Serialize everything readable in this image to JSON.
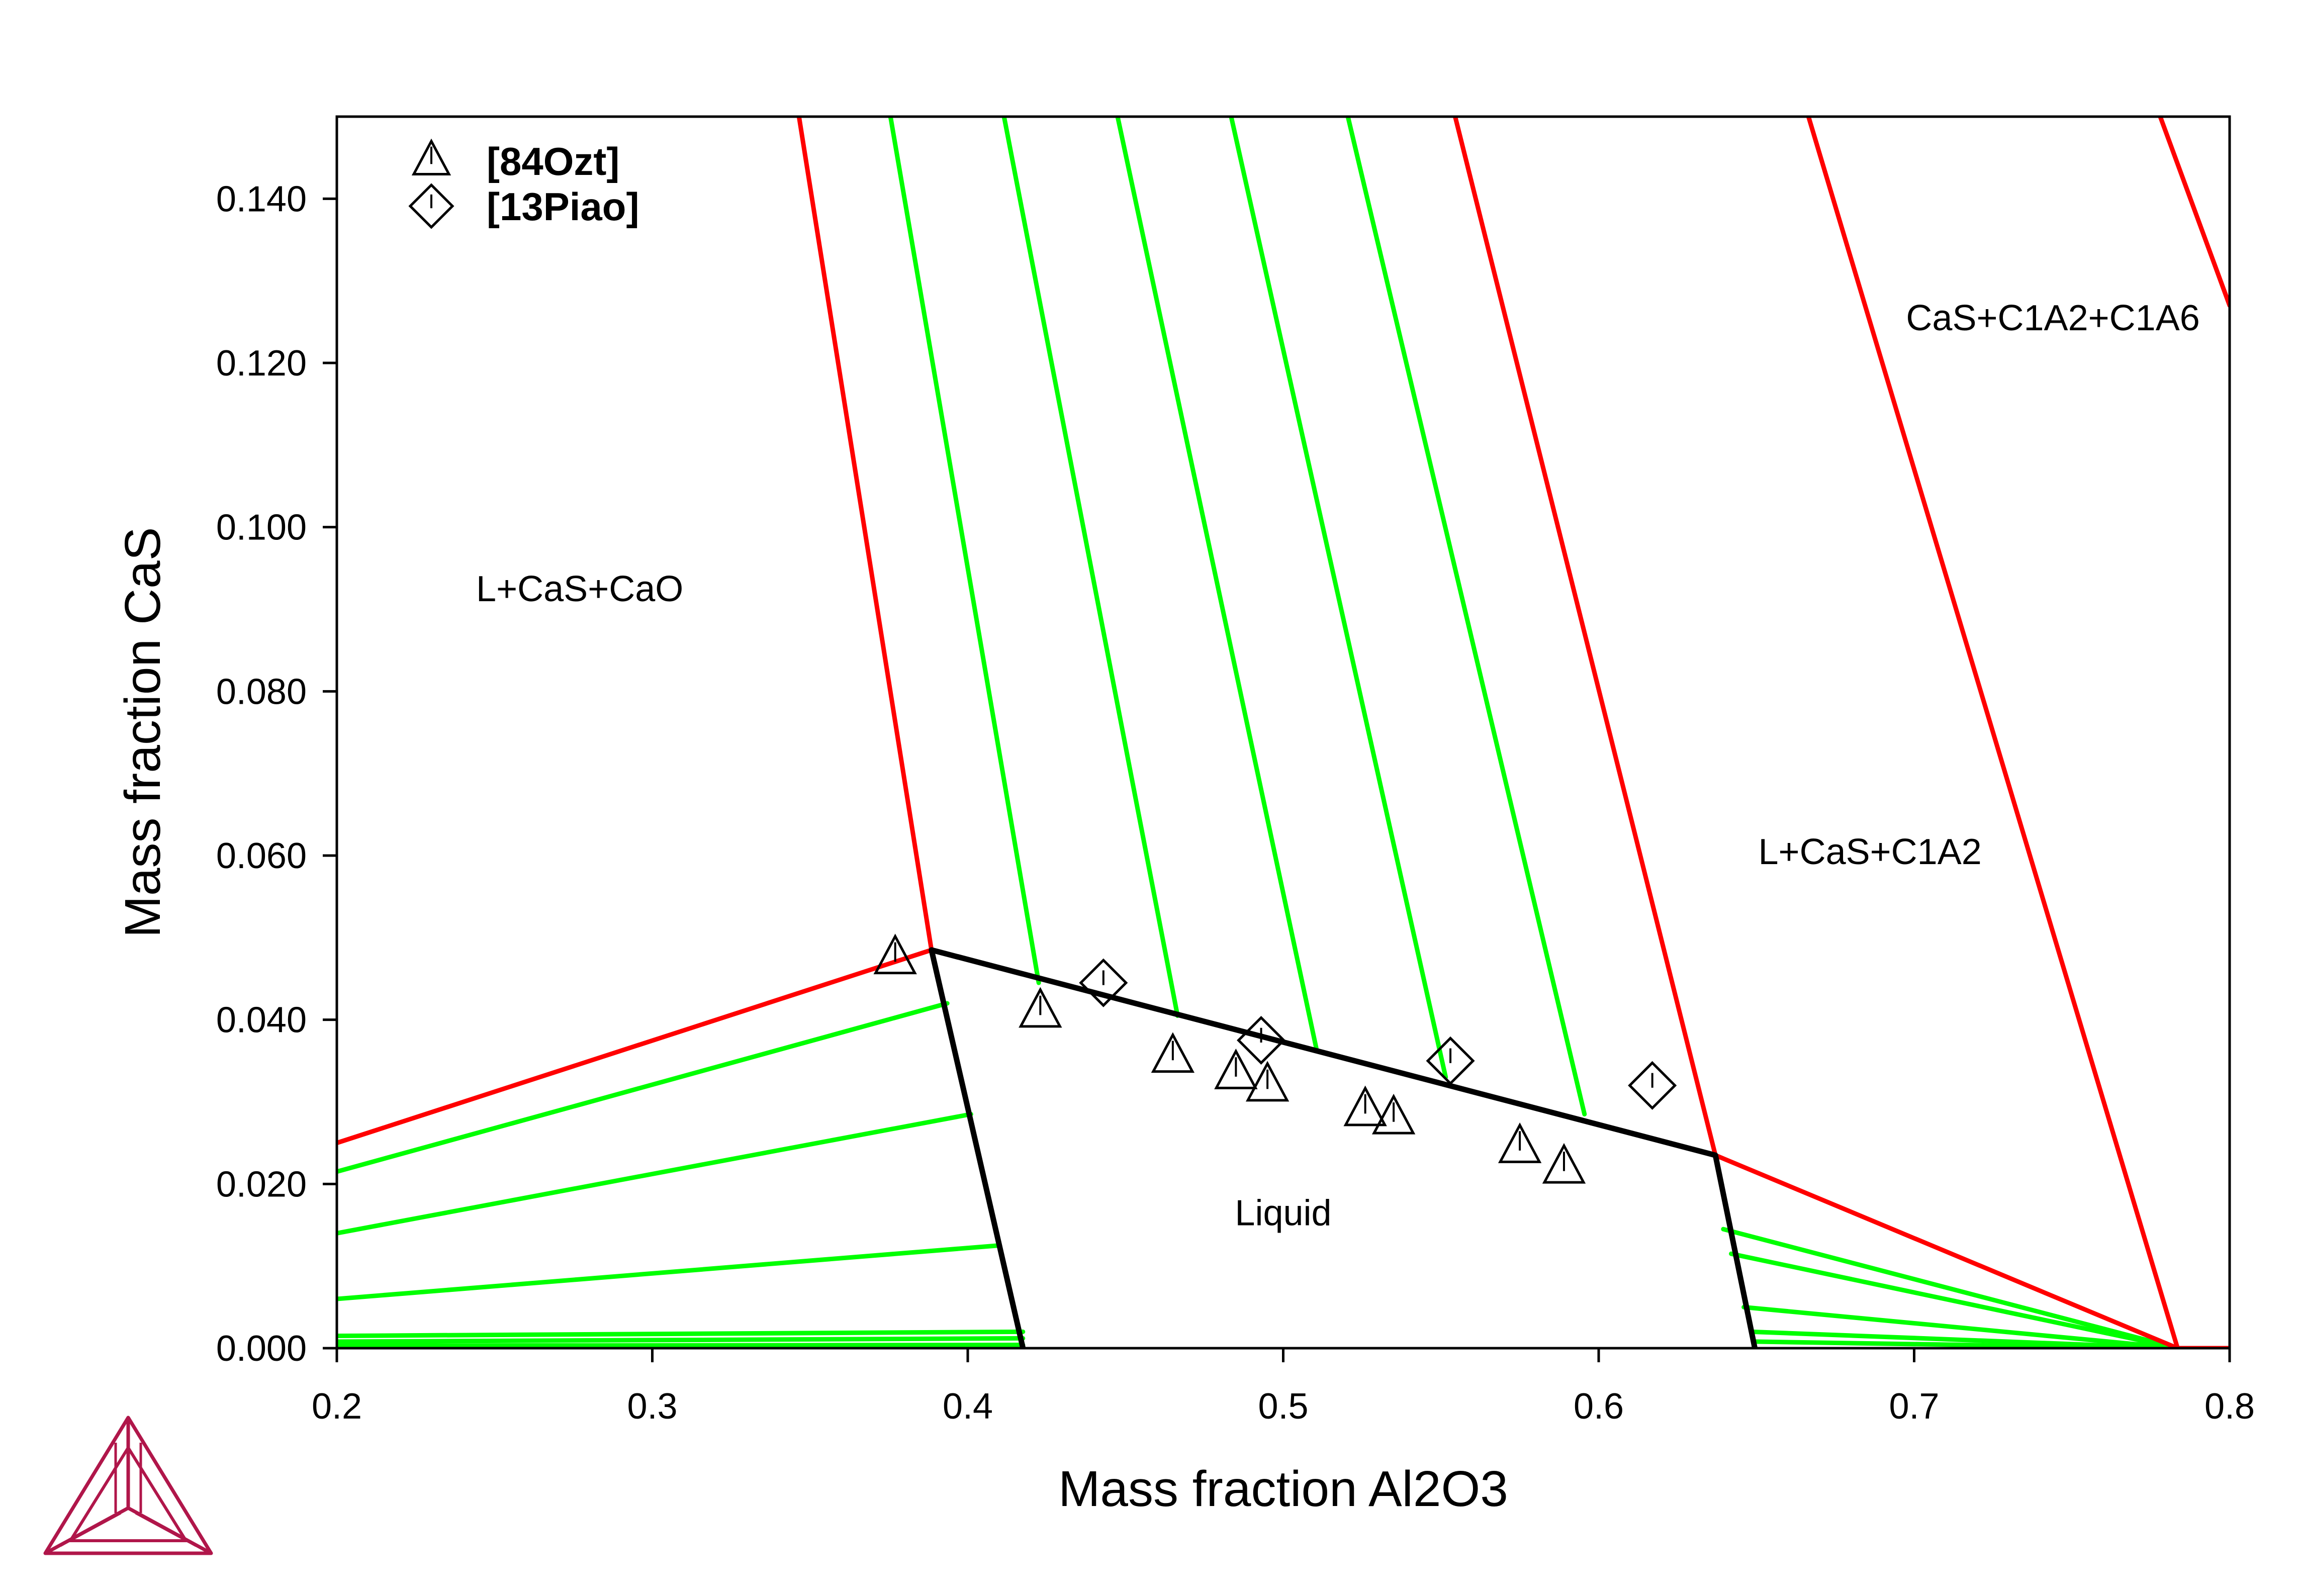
{
  "chart_data": {
    "type": "scatter",
    "xlabel": "Mass fraction Al2O3",
    "ylabel": "Mass fraction CaS",
    "xlim": [
      0.2,
      0.8
    ],
    "ylim": [
      0.0,
      0.15
    ],
    "x_ticks": [
      "0.2",
      "0.3",
      "0.4",
      "0.5",
      "0.6",
      "0.7",
      "0.8"
    ],
    "x_tick_values": [
      0.2,
      0.3,
      0.4,
      0.5,
      0.6,
      0.7,
      0.8
    ],
    "y_ticks": [
      "0.000",
      "0.020",
      "0.040",
      "0.060",
      "0.080",
      "0.100",
      "0.120",
      "0.140"
    ],
    "y_tick_values": [
      0.0,
      0.02,
      0.04,
      0.06,
      0.08,
      0.1,
      0.12,
      0.14
    ],
    "grid": false,
    "legend_position": "top-left",
    "legend": [
      {
        "label": "[84Ozt]",
        "marker": "triangle"
      },
      {
        "label": "[13Piao]",
        "marker": "diamond"
      }
    ],
    "region_labels": [
      {
        "text": "L+CaS+CaO",
        "x": 0.277,
        "y": 0.0925
      },
      {
        "text": "L+CaS+C1A2",
        "x": 0.686,
        "y": 0.0605
      },
      {
        "text": "CaS+C1A2+C1A6",
        "x": 0.744,
        "y": 0.1255
      },
      {
        "text": "Liquid",
        "x": 0.5,
        "y": 0.0165
      }
    ],
    "phase_boundaries": {
      "black_lines": [
        {
          "x": [
            0.3885,
            0.637
          ],
          "y": [
            0.0485,
            0.0235
          ]
        },
        {
          "x": [
            0.3885,
            0.4175
          ],
          "y": [
            0.0485,
            0.0
          ]
        },
        {
          "x": [
            0.637,
            0.6495
          ],
          "y": [
            0.0235,
            0.0
          ]
        }
      ],
      "red_lines": [
        {
          "x": [
            0.2,
            0.3885
          ],
          "y": [
            0.025,
            0.0485
          ]
        },
        {
          "x": [
            0.3885,
            0.3465
          ],
          "y": [
            0.0485,
            0.15
          ]
        },
        {
          "x": [
            0.637,
            0.5545
          ],
          "y": [
            0.0235,
            0.15
          ]
        },
        {
          "x": [
            0.637,
            0.7835
          ],
          "y": [
            0.0235,
            0.0
          ]
        },
        {
          "x": [
            0.7835,
            0.6665
          ],
          "y": [
            0.0,
            0.15
          ]
        },
        {
          "x": [
            0.8,
            0.778
          ],
          "y": [
            0.127,
            0.15
          ]
        },
        {
          "x": [
            0.7835,
            0.8
          ],
          "y": [
            0.0,
            0.0
          ]
        }
      ],
      "green_tie_lines": [
        {
          "x": [
            0.2,
            0.3935
          ],
          "y": [
            0.0215,
            0.042
          ]
        },
        {
          "x": [
            0.2,
            0.401
          ],
          "y": [
            0.014,
            0.0285
          ]
        },
        {
          "x": [
            0.2,
            0.4095
          ],
          "y": [
            0.006,
            0.0125
          ]
        },
        {
          "x": [
            0.2,
            0.4175
          ],
          "y": [
            0.0015,
            0.002
          ]
        },
        {
          "x": [
            0.2,
            0.4175
          ],
          "y": [
            0.0008,
            0.0012
          ]
        },
        {
          "x": [
            0.2,
            0.4175
          ],
          "y": [
            0.0003,
            0.0004
          ]
        },
        {
          "x": [
            0.4225,
            0.3755
          ],
          "y": [
            0.0445,
            0.15
          ]
        },
        {
          "x": [
            0.4665,
            0.4115
          ],
          "y": [
            0.0405,
            0.15
          ]
        },
        {
          "x": [
            0.5105,
            0.4475
          ],
          "y": [
            0.0365,
            0.15
          ]
        },
        {
          "x": [
            0.5515,
            0.4835
          ],
          "y": [
            0.033,
            0.15
          ]
        },
        {
          "x": [
            0.5955,
            0.5205
          ],
          "y": [
            0.0285,
            0.15
          ]
        },
        {
          "x": [
            0.6395,
            0.7835
          ],
          "y": [
            0.0145,
            0.0
          ]
        },
        {
          "x": [
            0.642,
            0.7835
          ],
          "y": [
            0.0115,
            0.0
          ]
        },
        {
          "x": [
            0.646,
            0.7835
          ],
          "y": [
            0.005,
            0.0
          ]
        },
        {
          "x": [
            0.6485,
            0.7835
          ],
          "y": [
            0.002,
            0.0
          ]
        },
        {
          "x": [
            0.649,
            0.7835
          ],
          "y": [
            0.0008,
            0.0
          ]
        }
      ]
    },
    "series": [
      {
        "name": "[84Ozt]",
        "marker": "triangle",
        "x": [
          0.377,
          0.423,
          0.465,
          0.485,
          0.495,
          0.526,
          0.535,
          0.575,
          0.589
        ],
        "y": [
          0.0475,
          0.041,
          0.0355,
          0.0335,
          0.032,
          0.029,
          0.028,
          0.0245,
          0.022
        ]
      },
      {
        "name": "[13Piao]",
        "marker": "diamond",
        "x": [
          0.443,
          0.493,
          0.553,
          0.617
        ],
        "y": [
          0.0445,
          0.0375,
          0.035,
          0.032
        ]
      }
    ]
  },
  "colors": {
    "phase_boundary_black": "#000000",
    "red_boundary": "#ff0000",
    "green_tie_line": "#00ff00",
    "logo": "#b0164a"
  },
  "logo": {
    "icon": "thermo-calc-triangle-logo-icon"
  }
}
